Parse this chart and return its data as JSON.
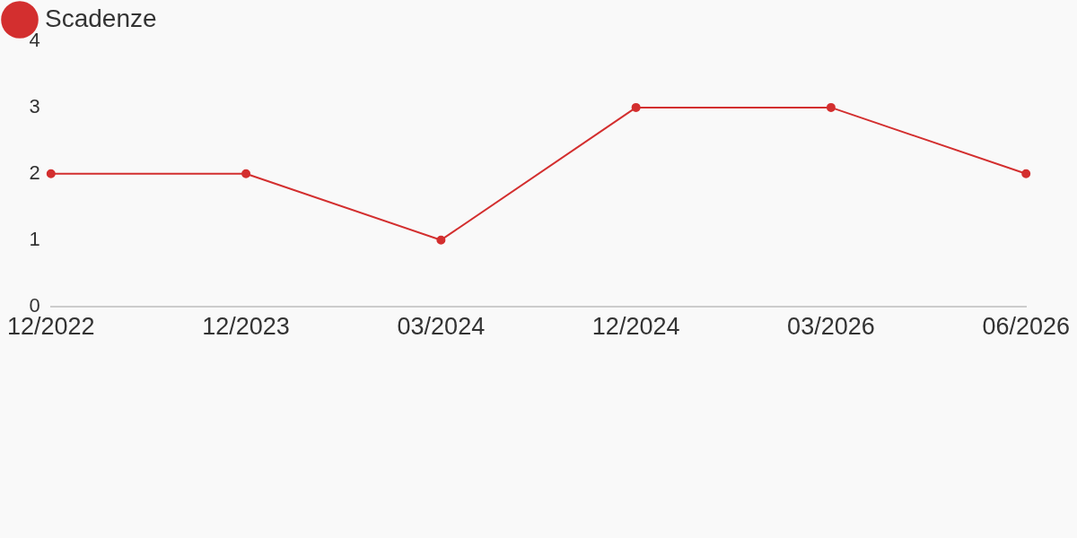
{
  "chart_data": {
    "type": "line",
    "categories": [
      "12/2022",
      "12/2023",
      "03/2024",
      "12/2024",
      "03/2026",
      "06/2026"
    ],
    "series": [
      {
        "name": "Scadenze",
        "color": "#d32f2f",
        "values": [
          2,
          2,
          1,
          3,
          3,
          2
        ]
      }
    ],
    "ylim": [
      0,
      4
    ],
    "yticks": [
      0,
      1,
      2,
      3,
      4
    ],
    "grid": false,
    "legend": "top left",
    "marker": "circle",
    "line_style": "solid"
  }
}
